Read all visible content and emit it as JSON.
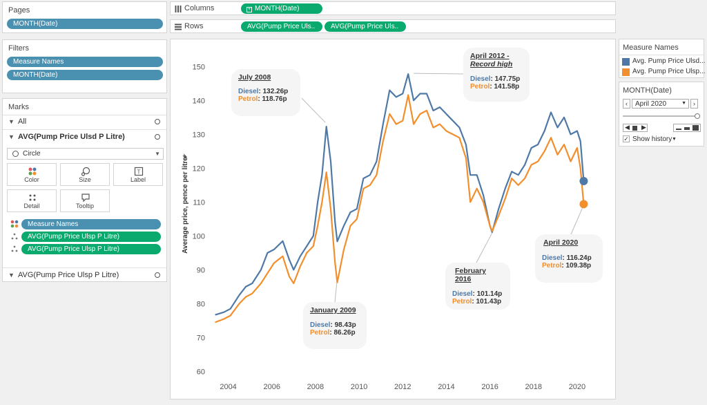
{
  "pages": {
    "title": "Pages",
    "pill": "MONTH(Date)"
  },
  "filters": {
    "title": "Filters",
    "pills": [
      "Measure Names",
      "MONTH(Date)"
    ]
  },
  "marks": {
    "title": "Marks",
    "all_label": "All",
    "section1_label": "AVG(Pump Price Ulsd P Litre)",
    "mark_type": "Circle",
    "buttons": {
      "color": "Color",
      "size": "Size",
      "label": "Label",
      "detail": "Detail",
      "tooltip": "Tooltip"
    },
    "fields": [
      "Measure Names",
      "AVG(Pump Price Ulsp P Litre)",
      "AVG(Pump Price Ulsp P Litre)"
    ],
    "section2_label": "AVG(Pump Price Ulsp P Litre)"
  },
  "shelves": {
    "columns_label": "Columns",
    "columns_pill": "MONTH(Date)",
    "rows_label": "Rows",
    "rows_pills": [
      "AVG(Pump Price Uls..",
      "AVG(Pump Price Uls.."
    ]
  },
  "legend": {
    "title": "Measure Names",
    "items": [
      {
        "label": "Avg. Pump Price Ulsd...",
        "color": "#4e79a7"
      },
      {
        "label": "Avg. Pump Price Ulsp...",
        "color": "#f28e2b"
      }
    ]
  },
  "page_control": {
    "title": "MONTH(Date)",
    "value": "April 2020",
    "show_history": "Show history"
  },
  "annotations": {
    "jul2008": {
      "title": "July 2008",
      "diesel_label": "Diesel",
      "diesel": "132.26p",
      "petrol_label": "Petrol",
      "petrol": "118.76p"
    },
    "apr2012": {
      "title": "April 2012  -",
      "subtitle": "Record high",
      "diesel_label": "Diesel",
      "diesel": "147.75p",
      "petrol_label": "Petrol",
      "petrol": "141.58p"
    },
    "jan2009": {
      "title": "January 2009",
      "diesel_label": "Diesel",
      "diesel": "98.43p",
      "petrol_label": "Petrol",
      "petrol": "86.26p"
    },
    "feb2016": {
      "title": "February 2016",
      "diesel_label": "Diesel",
      "diesel": "101.14p",
      "petrol_label": "Petrol",
      "petrol": "101.43p"
    },
    "apr2020": {
      "title": "April 2020",
      "diesel_label": "Diesel",
      "diesel": "116.24p",
      "petrol_label": "Petrol",
      "petrol": "109.38p"
    }
  },
  "chart_data": {
    "type": "line",
    "title": "",
    "xlabel": "",
    "ylabel": "Average price, pence per litre",
    "xlim": [
      2003.0,
      2021.3
    ],
    "ylim": [
      55,
      157
    ],
    "y_ticks": [
      60,
      70,
      80,
      90,
      100,
      110,
      120,
      130,
      140,
      150
    ],
    "x_ticks": [
      2004,
      2006,
      2008,
      2010,
      2012,
      2014,
      2016,
      2018,
      2020
    ],
    "grid": false,
    "series": [
      {
        "color": "#4e79a7",
        "points": [
          [
            2003.4,
            76.7
          ],
          [
            2003.8,
            77.5
          ],
          [
            2004.1,
            78.5
          ],
          [
            2004.5,
            82.5
          ],
          [
            2004.8,
            85
          ],
          [
            2005.1,
            86
          ],
          [
            2005.5,
            90
          ],
          [
            2005.8,
            95
          ],
          [
            2006.1,
            96
          ],
          [
            2006.5,
            98.5
          ],
          [
            2006.8,
            93
          ],
          [
            2007.0,
            90
          ],
          [
            2007.3,
            94
          ],
          [
            2007.6,
            97
          ],
          [
            2007.9,
            100
          ],
          [
            2008.1,
            110
          ],
          [
            2008.3,
            118
          ],
          [
            2008.5,
            132.3
          ],
          [
            2008.7,
            122
          ],
          [
            2008.9,
            104
          ],
          [
            2009.0,
            98.4
          ],
          [
            2009.3,
            103
          ],
          [
            2009.6,
            107
          ],
          [
            2009.9,
            108
          ],
          [
            2010.2,
            117
          ],
          [
            2010.5,
            118
          ],
          [
            2010.8,
            122
          ],
          [
            2011.1,
            133
          ],
          [
            2011.4,
            143
          ],
          [
            2011.7,
            141
          ],
          [
            2012.0,
            142
          ],
          [
            2012.25,
            147.8
          ],
          [
            2012.5,
            140
          ],
          [
            2012.8,
            142
          ],
          [
            2013.1,
            142
          ],
          [
            2013.4,
            137
          ],
          [
            2013.7,
            138
          ],
          [
            2014.0,
            136
          ],
          [
            2014.3,
            134
          ],
          [
            2014.6,
            132
          ],
          [
            2014.9,
            127
          ],
          [
            2015.1,
            118
          ],
          [
            2015.4,
            118
          ],
          [
            2015.7,
            112
          ],
          [
            2016.0,
            103
          ],
          [
            2016.1,
            101.1
          ],
          [
            2016.4,
            108
          ],
          [
            2016.7,
            114
          ],
          [
            2017.0,
            119
          ],
          [
            2017.3,
            118
          ],
          [
            2017.6,
            121
          ],
          [
            2017.9,
            126
          ],
          [
            2018.2,
            127
          ],
          [
            2018.5,
            131
          ],
          [
            2018.8,
            136.5
          ],
          [
            2019.1,
            132
          ],
          [
            2019.4,
            135
          ],
          [
            2019.7,
            130
          ],
          [
            2020.0,
            131
          ],
          [
            2020.15,
            128
          ],
          [
            2020.3,
            116.2
          ]
        ]
      },
      {
        "color": "#f28e2b",
        "points": [
          [
            2003.4,
            74.5
          ],
          [
            2003.8,
            75.5
          ],
          [
            2004.1,
            76.5
          ],
          [
            2004.5,
            80
          ],
          [
            2004.8,
            82
          ],
          [
            2005.1,
            83
          ],
          [
            2005.5,
            86
          ],
          [
            2005.8,
            89
          ],
          [
            2006.1,
            92
          ],
          [
            2006.5,
            94
          ],
          [
            2006.8,
            88
          ],
          [
            2007.0,
            86
          ],
          [
            2007.3,
            91
          ],
          [
            2007.6,
            95
          ],
          [
            2007.9,
            97
          ],
          [
            2008.1,
            103
          ],
          [
            2008.3,
            110
          ],
          [
            2008.5,
            118.8
          ],
          [
            2008.7,
            108
          ],
          [
            2008.9,
            92
          ],
          [
            2009.0,
            86.3
          ],
          [
            2009.3,
            96
          ],
          [
            2009.6,
            103
          ],
          [
            2009.9,
            105
          ],
          [
            2010.2,
            114
          ],
          [
            2010.5,
            115
          ],
          [
            2010.8,
            118
          ],
          [
            2011.1,
            128
          ],
          [
            2011.4,
            136
          ],
          [
            2011.7,
            133
          ],
          [
            2012.0,
            134
          ],
          [
            2012.25,
            141.6
          ],
          [
            2012.5,
            133
          ],
          [
            2012.8,
            136
          ],
          [
            2013.1,
            137
          ],
          [
            2013.4,
            132
          ],
          [
            2013.7,
            133
          ],
          [
            2014.0,
            131
          ],
          [
            2014.3,
            130
          ],
          [
            2014.6,
            129
          ],
          [
            2014.9,
            123
          ],
          [
            2015.1,
            110
          ],
          [
            2015.4,
            114
          ],
          [
            2015.7,
            110
          ],
          [
            2016.0,
            103
          ],
          [
            2016.1,
            101.4
          ],
          [
            2016.4,
            106
          ],
          [
            2016.7,
            111
          ],
          [
            2017.0,
            117
          ],
          [
            2017.3,
            115
          ],
          [
            2017.6,
            117
          ],
          [
            2017.9,
            121
          ],
          [
            2018.2,
            122
          ],
          [
            2018.5,
            125
          ],
          [
            2018.8,
            129
          ],
          [
            2019.1,
            124
          ],
          [
            2019.4,
            127
          ],
          [
            2019.7,
            122
          ],
          [
            2020.0,
            126
          ],
          [
            2020.15,
            120
          ],
          [
            2020.3,
            109.4
          ]
        ]
      }
    ]
  }
}
